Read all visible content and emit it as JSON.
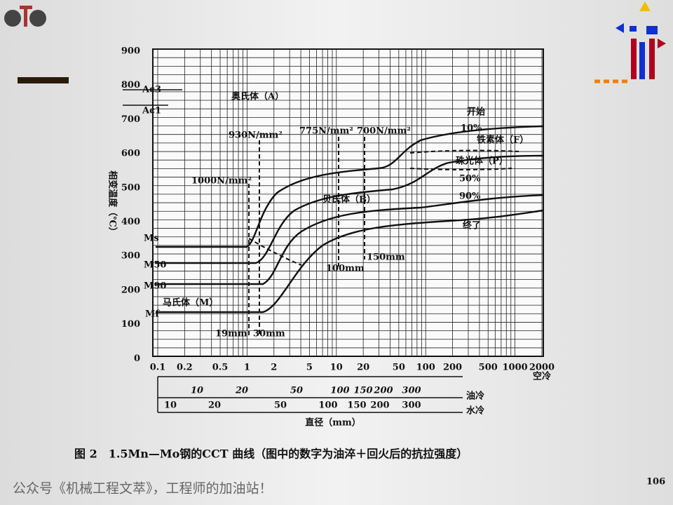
{
  "figure": {
    "y_axis_label": "相变温度（℃）",
    "y_ticks": [
      "900",
      "800",
      "700",
      "600",
      "500",
      "400",
      "300",
      "200",
      "100",
      "0"
    ],
    "y_markers": [
      "Ac3",
      "Ac1",
      "Ms",
      "M50",
      "M90",
      "Mf"
    ],
    "region_labels": [
      "奥氏体（A）",
      "铁素体（F）",
      "珠光体（P）",
      "贝氏体（B）",
      "马氏体（M）"
    ],
    "curve_labels": [
      "开始",
      "10%",
      "50%",
      "90%",
      "终了"
    ],
    "strength_labels": [
      "930N/mm²",
      "775N/mm²",
      "700N/mm²",
      "1000N/mm²"
    ],
    "size_labels": [
      "19mm",
      "30mm",
      "100mm",
      "150mm"
    ],
    "x_ticks_air": [
      "0.1",
      "0.2",
      "0.5",
      "1",
      "2",
      "5",
      "10",
      "20",
      "50",
      "100",
      "200",
      "500",
      "1000",
      "2000"
    ],
    "air_label": "空冷",
    "x_ticks_oil": [
      "10",
      "20",
      "50",
      "100",
      "150",
      "200",
      "300"
    ],
    "oil_label": "油冷",
    "x_ticks_water": [
      "10",
      "20",
      "50",
      "100",
      "150",
      "200",
      "300"
    ],
    "water_label": "水冷",
    "x_label": "直径（mm）",
    "caption": "图 2　1.5Mn—Mo钢的CCT 曲线（图中的数字为油淬＋回火后的抗拉强度）"
  },
  "page_number": "106",
  "footer": "公众号《机械工程文萃》，工程师的加油站！"
}
